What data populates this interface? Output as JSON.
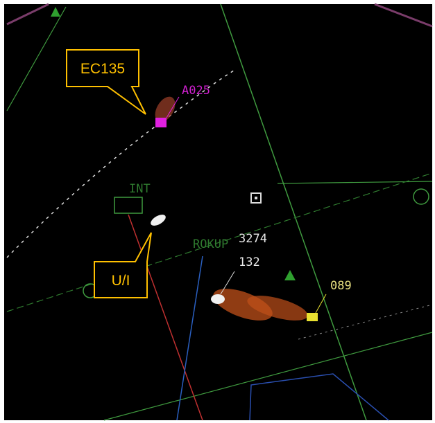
{
  "callouts": [
    {
      "label": "EC135"
    },
    {
      "label": "U/I"
    }
  ],
  "targets": [
    {
      "label": "A025"
    },
    {
      "label": "3274"
    },
    {
      "label": "132"
    },
    {
      "label": "089"
    }
  ],
  "map_labels": [
    {
      "label": "INT"
    },
    {
      "label": "ROKUP"
    }
  ]
}
